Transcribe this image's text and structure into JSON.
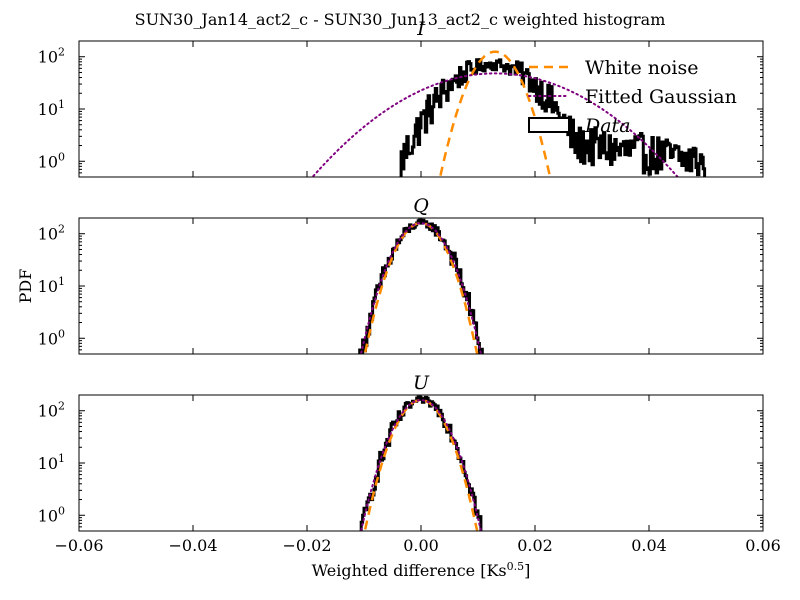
{
  "figure": {
    "title": "SUN30_Jan14_act2_c - SUN30_Jun13_act2_c weighted histogram",
    "xlabel": "Weighted difference [Ks",
    "xlabel_sup": "0.5",
    "xlabel_end": "]",
    "ylabel": "PDF"
  },
  "colors": {
    "data": "#000000",
    "white_noise": "#ff8c00",
    "fitted_gaussian": "#800080",
    "axes": "#000000",
    "background": "#ffffff"
  },
  "chart_data": [
    {
      "type": "line",
      "panel": "I",
      "title": "I",
      "xlim": [
        -0.06,
        0.06
      ],
      "ylim": [
        0.5,
        200
      ],
      "yscale": "log",
      "x_ticks": [
        -0.06,
        -0.04,
        -0.02,
        0.0,
        0.02,
        0.04,
        0.06
      ],
      "x_tick_labels": [
        "−0.06",
        "−0.04",
        "−0.02",
        "0.00",
        "0.02",
        "0.04",
        "0.06"
      ],
      "y_ticks": [
        1,
        10,
        100
      ],
      "y_tick_labels": [
        {
          "base": "10",
          "exp": "0"
        },
        {
          "base": "10",
          "exp": "1"
        },
        {
          "base": "10",
          "exp": "2"
        }
      ],
      "show_x_tick_labels": false,
      "legend": {
        "placement": "top-right",
        "entries": [
          {
            "label": "White noise",
            "style": "dashed",
            "color": "#ff8c00"
          },
          {
            "label": "Fitted Gaussian",
            "style": "dotted",
            "color": "#800080"
          },
          {
            "label": "Data",
            "style": "box",
            "color": "#000000",
            "italic": true
          }
        ]
      },
      "series": [
        {
          "name": "Data",
          "kind": "data",
          "peak": 72,
          "mu": 0.0125,
          "sigma": 0.0055,
          "xmin": -0.0035,
          "xmax": 0.0495,
          "tail_start": 0.022,
          "tail_value": 2.4,
          "tail_end_value": 1.0,
          "noise": 0.22
        },
        {
          "name": "White noise",
          "kind": "white_noise",
          "peak": 125,
          "mu": 0.013,
          "sigma": 0.0029
        },
        {
          "name": "Fitted Gaussian",
          "kind": "fitted_gaussian",
          "peak": 48,
          "mu": 0.013,
          "sigma": 0.0106
        }
      ]
    },
    {
      "type": "line",
      "panel": "Q",
      "title": "Q",
      "xlim": [
        -0.06,
        0.06
      ],
      "ylim": [
        0.5,
        200
      ],
      "yscale": "log",
      "x_ticks": [
        -0.06,
        -0.04,
        -0.02,
        0.0,
        0.02,
        0.04,
        0.06
      ],
      "x_tick_labels": [
        "−0.06",
        "−0.04",
        "−0.02",
        "0.00",
        "0.02",
        "0.04",
        "0.06"
      ],
      "y_ticks": [
        1,
        10,
        100
      ],
      "y_tick_labels": [
        {
          "base": "10",
          "exp": "0"
        },
        {
          "base": "10",
          "exp": "1"
        },
        {
          "base": "10",
          "exp": "2"
        }
      ],
      "show_x_tick_labels": false,
      "series": [
        {
          "name": "Data",
          "kind": "data",
          "peak": 160,
          "mu": 0.0,
          "sigma": 0.0031,
          "xmin": -0.0115,
          "xmax": 0.0105,
          "noise": 0.12
        },
        {
          "name": "White noise",
          "kind": "white_noise",
          "peak": 160,
          "mu": 0.0,
          "sigma": 0.0029
        },
        {
          "name": "Fitted Gaussian",
          "kind": "fitted_gaussian",
          "peak": 160,
          "mu": 0.0,
          "sigma": 0.0031
        }
      ]
    },
    {
      "type": "line",
      "panel": "U",
      "title": "U",
      "xlim": [
        -0.06,
        0.06
      ],
      "ylim": [
        0.5,
        200
      ],
      "yscale": "log",
      "x_ticks": [
        -0.06,
        -0.04,
        -0.02,
        0.0,
        0.02,
        0.04,
        0.06
      ],
      "x_tick_labels": [
        "−0.06",
        "−0.04",
        "−0.02",
        "0.00",
        "0.02",
        "0.04",
        "0.06"
      ],
      "y_ticks": [
        1,
        10,
        100
      ],
      "y_tick_labels": [
        {
          "base": "10",
          "exp": "0"
        },
        {
          "base": "10",
          "exp": "1"
        },
        {
          "base": "10",
          "exp": "2"
        }
      ],
      "show_x_tick_labels": true,
      "series": [
        {
          "name": "Data",
          "kind": "data",
          "peak": 160,
          "mu": 0.0,
          "sigma": 0.0031,
          "xmin": -0.012,
          "xmax": 0.0105,
          "noise": 0.12
        },
        {
          "name": "White noise",
          "kind": "white_noise",
          "peak": 160,
          "mu": 0.0,
          "sigma": 0.0029
        },
        {
          "name": "Fitted Gaussian",
          "kind": "fitted_gaussian",
          "peak": 160,
          "mu": 0.0,
          "sigma": 0.0031
        }
      ]
    }
  ]
}
